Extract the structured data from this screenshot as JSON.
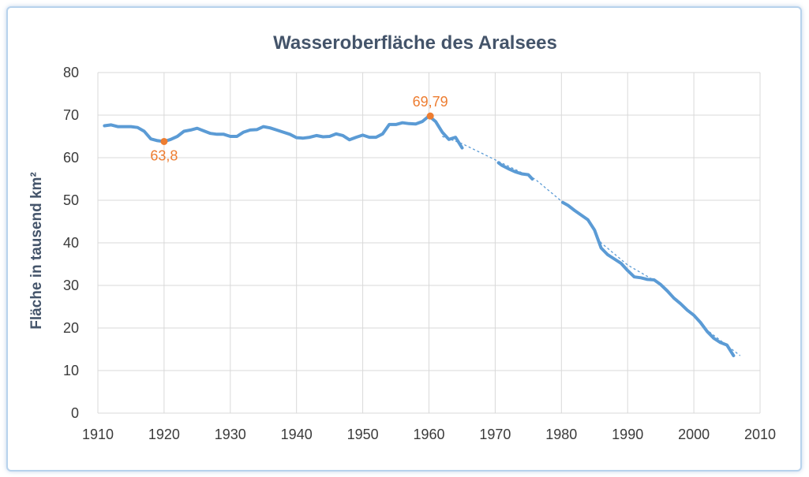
{
  "chart_data": {
    "type": "line",
    "title": "Wasseroberfläche des Aralsees",
    "xlabel": "",
    "ylabel": "Fläche in tausend km²",
    "xlim": [
      1910,
      2010
    ],
    "ylim": [
      0,
      80
    ],
    "x_ticks": [
      "1910",
      "1920",
      "1930",
      "1940",
      "1950",
      "1960",
      "1970",
      "1980",
      "1990",
      "2000",
      "2010"
    ],
    "y_ticks": [
      "0",
      "10",
      "20",
      "30",
      "40",
      "50",
      "60",
      "70",
      "80"
    ],
    "grid": true,
    "legend": "none",
    "colors": {
      "series": "#5b9bd5",
      "annotation": "#ed7d31",
      "title": "#44546a",
      "grid": "#d9d9d9"
    },
    "series": [
      {
        "segments": [
          [
            [
              1911,
              67.5
            ],
            [
              1912,
              67.7
            ],
            [
              1913,
              67.3
            ],
            [
              1914,
              67.3
            ],
            [
              1915,
              67.3
            ],
            [
              1916,
              67.1
            ],
            [
              1917,
              66.2
            ],
            [
              1918,
              64.4
            ],
            [
              1919,
              64.0
            ],
            [
              1920,
              63.8
            ],
            [
              1921,
              64.3
            ],
            [
              1922,
              65.0
            ],
            [
              1923,
              66.2
            ],
            [
              1924,
              66.5
            ],
            [
              1925,
              66.9
            ],
            [
              1926,
              66.3
            ],
            [
              1927,
              65.7
            ],
            [
              1928,
              65.5
            ],
            [
              1929,
              65.5
            ],
            [
              1930,
              65.0
            ],
            [
              1931,
              65.0
            ],
            [
              1932,
              66.0
            ],
            [
              1933,
              66.5
            ],
            [
              1934,
              66.6
            ],
            [
              1935,
              67.3
            ],
            [
              1936,
              67.0
            ],
            [
              1937,
              66.5
            ],
            [
              1938,
              66.0
            ],
            [
              1939,
              65.5
            ],
            [
              1940,
              64.7
            ],
            [
              1941,
              64.6
            ],
            [
              1942,
              64.8
            ],
            [
              1943,
              65.2
            ],
            [
              1944,
              64.9
            ],
            [
              1945,
              65.0
            ],
            [
              1946,
              65.6
            ],
            [
              1947,
              65.2
            ],
            [
              1948,
              64.2
            ],
            [
              1949,
              64.8
            ],
            [
              1950,
              65.3
            ],
            [
              1951,
              64.8
            ],
            [
              1952,
              64.8
            ],
            [
              1953,
              65.6
            ],
            [
              1954,
              67.8
            ],
            [
              1955,
              67.8
            ],
            [
              1956,
              68.2
            ],
            [
              1957,
              68.0
            ],
            [
              1958,
              67.9
            ],
            [
              1959,
              68.5
            ],
            [
              1960,
              69.79
            ],
            [
              1961,
              68.5
            ],
            [
              1962,
              66.0
            ],
            [
              1963,
              64.3
            ],
            [
              1964,
              64.8
            ],
            [
              1965,
              62.3
            ]
          ],
          [
            [
              1970.5,
              58.8
            ],
            [
              1971,
              58.2
            ],
            [
              1972,
              57.4
            ],
            [
              1973,
              56.7
            ],
            [
              1974,
              56.2
            ],
            [
              1975,
              56.0
            ],
            [
              1975.6,
              55.0
            ]
          ],
          [
            [
              1980.2,
              49.5
            ],
            [
              1981,
              48.8
            ],
            [
              1982,
              47.6
            ],
            [
              1983,
              46.5
            ],
            [
              1984,
              45.4
            ],
            [
              1985,
              43.0
            ],
            [
              1986,
              38.8
            ],
            [
              1987,
              37.2
            ],
            [
              1988,
              36.2
            ],
            [
              1989,
              35.2
            ],
            [
              1990,
              33.5
            ],
            [
              1991,
              32.0
            ],
            [
              1992,
              31.8
            ],
            [
              1993,
              31.4
            ],
            [
              1994,
              31.3
            ],
            [
              1995,
              30.2
            ],
            [
              1996,
              28.7
            ],
            [
              1997,
              27.0
            ],
            [
              1998,
              25.7
            ],
            [
              1999,
              24.2
            ],
            [
              2000,
              23.0
            ],
            [
              2001,
              21.3
            ],
            [
              2002,
              19.2
            ],
            [
              2003,
              17.6
            ],
            [
              2004,
              16.6
            ],
            [
              2005,
              16.0
            ],
            [
              2006,
              13.5
            ]
          ]
        ]
      }
    ],
    "trendline": [
      [
        1962,
        65.0
      ],
      [
        1965,
        63.3
      ],
      [
        1970,
        59.5
      ],
      [
        1976,
        55.0
      ],
      [
        1980,
        49.8
      ],
      [
        1984,
        45.2
      ],
      [
        1986,
        40.0
      ],
      [
        1990,
        34.8
      ],
      [
        1994,
        31.2
      ],
      [
        1998,
        26.0
      ],
      [
        2002,
        19.5
      ],
      [
        2007,
        13.5
      ]
    ],
    "annotations": [
      {
        "x": 1920,
        "y": 63.8,
        "label": "63,8",
        "position": "below"
      },
      {
        "x": 1960.2,
        "y": 69.79,
        "label": "69,79",
        "position": "above"
      }
    ]
  }
}
